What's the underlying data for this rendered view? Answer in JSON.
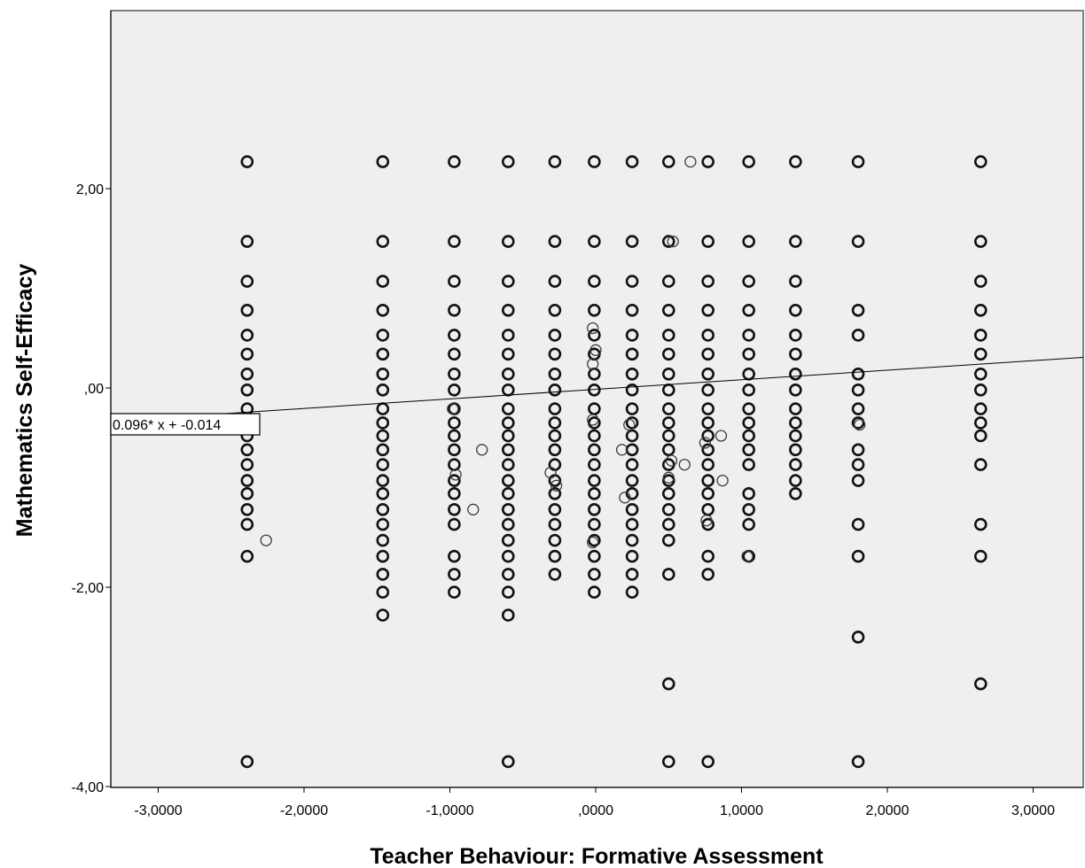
{
  "chart_data": {
    "type": "scatter",
    "xlabel": "Teacher Behaviour: Formative Assessment",
    "ylabel": "Mathematics Self-Efficacy",
    "xlim": [
      -3.3,
      3.3
    ],
    "ylim": [
      -4.0,
      3.8
    ],
    "x_ticks": [
      {
        "value": -3,
        "label": "-3,0000"
      },
      {
        "value": -2,
        "label": "-2,0000"
      },
      {
        "value": -1,
        "label": "-1,0000"
      },
      {
        "value": 0,
        "label": ",0000"
      },
      {
        "value": 1,
        "label": "1,0000"
      },
      {
        "value": 2,
        "label": "2,0000"
      },
      {
        "value": 3,
        "label": "3,0000"
      }
    ],
    "y_ticks": [
      {
        "value": 2,
        "label": "2,00"
      },
      {
        "value": 0,
        "label": ",00"
      },
      {
        "value": -2,
        "label": "-2,00"
      },
      {
        "value": -4,
        "label": "-4,00"
      }
    ],
    "grid": false,
    "fit_line": {
      "slope": 0.096,
      "intercept": -0.014,
      "label": "0.096* x + -0.014"
    },
    "columns": [
      {
        "x": -2.39,
        "y": [
          2.27,
          1.47,
          1.07,
          0.78,
          0.53,
          0.34,
          0.14,
          -0.02,
          -0.21,
          -0.35,
          -0.48,
          -0.62,
          -0.77,
          -0.93,
          -1.06,
          -1.22,
          -1.37,
          -1.69,
          -3.75
        ]
      },
      {
        "x": -1.46,
        "y": [
          2.27,
          1.47,
          1.07,
          0.78,
          0.53,
          0.34,
          0.14,
          -0.02,
          -0.21,
          -0.35,
          -0.48,
          -0.62,
          -0.77,
          -0.93,
          -1.06,
          -1.22,
          -1.37,
          -1.53,
          -1.69,
          -1.87,
          -2.05,
          -2.28
        ]
      },
      {
        "x": -0.97,
        "y": [
          2.27,
          1.47,
          1.07,
          0.78,
          0.53,
          0.34,
          0.14,
          -0.02,
          -0.21,
          -0.35,
          -0.48,
          -0.62,
          -0.77,
          -0.93,
          -1.06,
          -1.22,
          -1.37,
          -1.69,
          -1.87,
          -2.05
        ]
      },
      {
        "x": -0.6,
        "y": [
          2.27,
          1.47,
          1.07,
          0.78,
          0.53,
          0.34,
          0.14,
          -0.02,
          -0.21,
          -0.35,
          -0.48,
          -0.62,
          -0.77,
          -0.93,
          -1.06,
          -1.22,
          -1.37,
          -1.53,
          -1.69,
          -1.87,
          -2.05,
          -2.28,
          -3.75
        ]
      },
      {
        "x": -0.28,
        "y": [
          2.27,
          1.47,
          1.07,
          0.78,
          0.53,
          0.34,
          0.14,
          -0.02,
          -0.21,
          -0.35,
          -0.48,
          -0.62,
          -0.77,
          -0.93,
          -1.06,
          -1.22,
          -1.37,
          -1.53,
          -1.69,
          -1.87
        ]
      },
      {
        "x": -0.01,
        "y": [
          2.27,
          1.47,
          1.07,
          0.78,
          0.53,
          0.34,
          0.14,
          -0.02,
          -0.21,
          -0.35,
          -0.48,
          -0.62,
          -0.77,
          -0.93,
          -1.06,
          -1.22,
          -1.37,
          -1.53,
          -1.69,
          -1.87,
          -2.05
        ]
      },
      {
        "x": 0.25,
        "y": [
          2.27,
          1.47,
          1.07,
          0.78,
          0.53,
          0.34,
          0.14,
          -0.02,
          -0.21,
          -0.35,
          -0.48,
          -0.62,
          -0.77,
          -0.93,
          -1.06,
          -1.22,
          -1.37,
          -1.53,
          -1.69,
          -1.87,
          -2.05
        ]
      },
      {
        "x": 0.5,
        "y": [
          2.27,
          1.47,
          1.07,
          0.78,
          0.53,
          0.34,
          0.14,
          -0.02,
          -0.21,
          -0.35,
          -0.48,
          -0.62,
          -0.77,
          -0.93,
          -1.06,
          -1.22,
          -1.37,
          -1.53,
          -1.87,
          -2.97,
          -3.75
        ]
      },
      {
        "x": 0.77,
        "y": [
          2.27,
          1.47,
          1.07,
          0.78,
          0.53,
          0.34,
          0.14,
          -0.02,
          -0.21,
          -0.35,
          -0.48,
          -0.62,
          -0.77,
          -0.93,
          -1.06,
          -1.22,
          -1.37,
          -1.69,
          -1.87,
          -3.75
        ]
      },
      {
        "x": 1.05,
        "y": [
          2.27,
          1.47,
          1.07,
          0.78,
          0.53,
          0.34,
          0.14,
          -0.02,
          -0.21,
          -0.35,
          -0.48,
          -0.62,
          -0.77,
          -1.06,
          -1.22,
          -1.37,
          -1.69
        ]
      },
      {
        "x": 1.37,
        "y": [
          2.27,
          1.47,
          1.07,
          0.78,
          0.53,
          0.34,
          0.14,
          -0.02,
          -0.21,
          -0.35,
          -0.48,
          -0.62,
          -0.77,
          -0.93,
          -1.06
        ]
      },
      {
        "x": 1.8,
        "y": [
          2.27,
          1.47,
          0.78,
          0.53,
          0.14,
          -0.02,
          -0.21,
          -0.35,
          -0.62,
          -0.77,
          -0.93,
          -1.37,
          -1.69,
          -2.5,
          -3.75
        ]
      },
      {
        "x": 2.64,
        "y": [
          2.27,
          1.47,
          1.07,
          0.78,
          0.53,
          0.34,
          0.14,
          -0.02,
          -0.21,
          -0.35,
          -0.48,
          -0.77,
          -1.37,
          -1.69,
          -2.97
        ]
      }
    ],
    "extra_points": [
      {
        "x": -2.26,
        "y": -1.53
      },
      {
        "x": -0.98,
        "y": -0.21
      },
      {
        "x": -0.96,
        "y": -0.87
      },
      {
        "x": -0.78,
        "y": -0.62
      },
      {
        "x": -0.84,
        "y": -1.22
      },
      {
        "x": -0.31,
        "y": -0.85
      },
      {
        "x": -0.27,
        "y": -0.98
      },
      {
        "x": -0.02,
        "y": 0.6
      },
      {
        "x": -0.02,
        "y": 0.24
      },
      {
        "x": 0.0,
        "y": 0.38
      },
      {
        "x": -0.02,
        "y": -0.32
      },
      {
        "x": -0.02,
        "y": -1.55
      },
      {
        "x": 0.18,
        "y": -0.62
      },
      {
        "x": 0.2,
        "y": -1.1
      },
      {
        "x": 0.23,
        "y": -0.37
      },
      {
        "x": 0.5,
        "y": -0.9
      },
      {
        "x": 0.52,
        "y": -0.73
      },
      {
        "x": 0.53,
        "y": 1.47
      },
      {
        "x": 0.61,
        "y": -0.77
      },
      {
        "x": 0.65,
        "y": 2.27
      },
      {
        "x": 0.75,
        "y": -0.55
      },
      {
        "x": 0.76,
        "y": -1.33
      },
      {
        "x": 0.86,
        "y": -0.48
      },
      {
        "x": 0.87,
        "y": -0.93
      },
      {
        "x": 1.04,
        "y": -1.69
      },
      {
        "x": 1.81,
        "y": -0.37
      }
    ]
  }
}
